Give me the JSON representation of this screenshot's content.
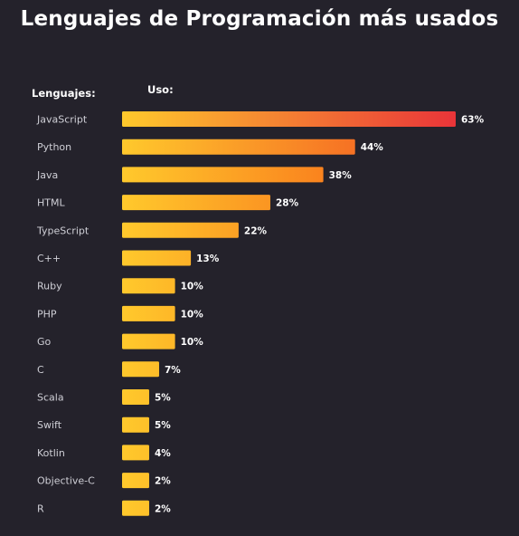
{
  "header": {
    "title": "Lenguajes de Programación más usados",
    "col_languages": "Lenguajes:",
    "col_usage": "Uso:"
  },
  "colors": {
    "background": "#24222b",
    "bar_start": "#ffc92c",
    "bar_end_max": "#e8303a"
  },
  "chart_data": {
    "type": "bar",
    "orientation": "horizontal",
    "title": "Lenguajes de Programación más usados",
    "xlabel": "Uso:",
    "ylabel": "Lenguajes:",
    "categories": [
      "JavaScript",
      "Python",
      "Java",
      "HTML",
      "TypeScript",
      "C++",
      "Ruby",
      "PHP",
      "Go",
      "C",
      "Scala",
      "Swift",
      "Kotlin",
      "Objective-C",
      "R"
    ],
    "values": [
      63,
      44,
      38,
      28,
      22,
      13,
      10,
      10,
      10,
      7,
      5,
      5,
      4,
      2,
      2
    ],
    "value_labels": [
      "63%",
      "44%",
      "38%",
      "28%",
      "22%",
      "13%",
      "10%",
      "10%",
      "10%",
      "7%",
      "5%",
      "5%",
      "4%",
      "2%",
      "2%"
    ],
    "unit": "%",
    "xlim": [
      0,
      63
    ],
    "grid": false,
    "legend": "none"
  }
}
